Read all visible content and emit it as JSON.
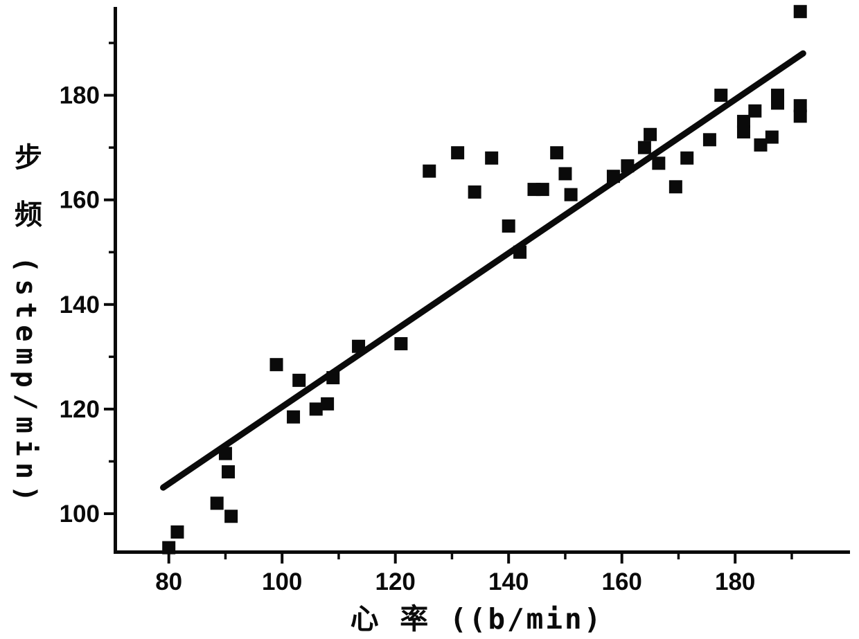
{
  "figure": {
    "kind": "patent-style scatter plot, black ink on white",
    "colors": {
      "ink": "#0a0a0a",
      "background": "#ffffff"
    }
  },
  "chart_data": {
    "type": "scatter",
    "title": "",
    "xlabel": "心 率 ((b/min)",
    "ylabel": "步 频 (stemp/min)",
    "xlim": [
      70.5,
      200.5
    ],
    "ylim": [
      92.5,
      197
    ],
    "x_ticks_major": [
      80,
      100,
      120,
      140,
      160,
      180
    ],
    "x_ticks_minor": [
      90,
      110,
      130,
      150,
      170,
      190
    ],
    "y_ticks_major": [
      100,
      120,
      140,
      160,
      180
    ],
    "y_ticks_minor": [
      110,
      130,
      150,
      170,
      190
    ],
    "grid": false,
    "legend": "none",
    "marker": "filled-square",
    "points": [
      [
        80,
        93.5
      ],
      [
        81.5,
        96.5
      ],
      [
        88.5,
        102
      ],
      [
        91,
        99.5
      ],
      [
        90.5,
        108
      ],
      [
        90,
        111.5
      ],
      [
        99,
        128.5
      ],
      [
        102,
        118.5
      ],
      [
        103,
        125.5
      ],
      [
        106,
        120
      ],
      [
        108,
        121
      ],
      [
        109,
        126
      ],
      [
        113.5,
        132
      ],
      [
        121,
        132.5
      ],
      [
        126,
        165.5
      ],
      [
        131,
        169
      ],
      [
        134,
        161.5
      ],
      [
        137,
        168
      ],
      [
        140,
        155
      ],
      [
        142,
        150
      ],
      [
        144.5,
        162
      ],
      [
        146,
        162
      ],
      [
        148.5,
        169
      ],
      [
        150,
        165
      ],
      [
        151,
        161
      ],
      [
        158.5,
        164.5
      ],
      [
        161,
        166.5
      ],
      [
        164,
        170
      ],
      [
        165,
        172.5
      ],
      [
        166.5,
        167
      ],
      [
        169.5,
        162.5
      ],
      [
        171.5,
        168
      ],
      [
        175.5,
        171.5
      ],
      [
        177.5,
        180
      ],
      [
        181.5,
        175
      ],
      [
        181.5,
        173
      ],
      [
        183.5,
        177
      ],
      [
        184.5,
        170.5
      ],
      [
        186.5,
        172
      ],
      [
        187.5,
        180
      ],
      [
        187.5,
        178.5
      ],
      [
        191.5,
        178
      ],
      [
        191.5,
        176
      ],
      [
        191.5,
        196
      ]
    ],
    "trend_line": {
      "x1": 79,
      "y1": 105,
      "x2": 192,
      "y2": 188
    }
  }
}
